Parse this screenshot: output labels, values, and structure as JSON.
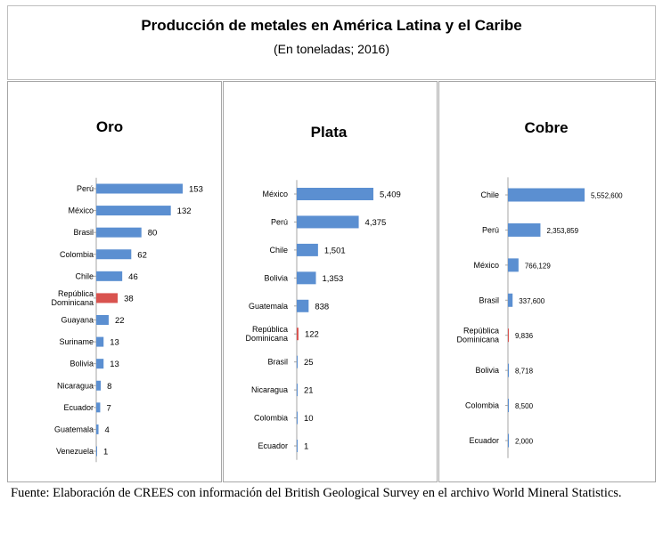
{
  "header": {
    "title": "Producción de metales en América Latina y el Caribe",
    "subtitle": "(En toneladas; 2016)"
  },
  "colors": {
    "bar": "#5b8fd1",
    "highlight": "#d9534f",
    "axis": "#a6a6a6"
  },
  "chart_data": [
    {
      "type": "bar",
      "orientation": "horizontal",
      "title": "Oro",
      "categories": [
        "Perú",
        "México",
        "Brasil",
        "Colombia",
        "Chile",
        "República Dominicana",
        "Guayana",
        "Suriname",
        "Bolivia",
        "Nicaragua",
        "Ecuador",
        "Guatemala",
        "Venezuela"
      ],
      "values": [
        153,
        132,
        80,
        62,
        46,
        38,
        22,
        13,
        13,
        8,
        7,
        4,
        1
      ],
      "labels": [
        "153",
        "132",
        "80",
        "62",
        "46",
        "38",
        "22",
        "13",
        "13",
        "8",
        "7",
        "4",
        "1"
      ],
      "highlight": "República Dominicana",
      "xlim": [
        0,
        153
      ]
    },
    {
      "type": "bar",
      "orientation": "horizontal",
      "title": "Plata",
      "categories": [
        "México",
        "Perú",
        "Chile",
        "Bolivia",
        "Guatemala",
        "República Dominicana",
        "Brasil",
        "Nicaragua",
        "Colombia",
        "Ecuador"
      ],
      "values": [
        5409,
        4375,
        1501,
        1353,
        838,
        122,
        25,
        21,
        10,
        1
      ],
      "labels": [
        "5,409",
        "4,375",
        "1,501",
        "1,353",
        "838",
        "122",
        "25",
        "21",
        "10",
        "1"
      ],
      "highlight": "República Dominicana",
      "xlim": [
        0,
        5409
      ]
    },
    {
      "type": "bar",
      "orientation": "horizontal",
      "title": "Cobre",
      "categories": [
        "Chile",
        "Perú",
        "México",
        "Brasil",
        "República Dominicana",
        "Bolivia",
        "Colombia",
        "Ecuador"
      ],
      "values": [
        5552600,
        2353859,
        766129,
        337600,
        9836,
        8718,
        8500,
        2000
      ],
      "labels": [
        "5,552,600",
        "2,353,859",
        "766,129",
        "337,600",
        "9,836",
        "8,718",
        "8,500",
        "2,000"
      ],
      "highlight": "República Dominicana",
      "xlim": [
        0,
        5552600
      ]
    }
  ],
  "source": "Fuente: Elaboración de CREES con información del British Geological Survey en el archivo World Mineral Statistics."
}
